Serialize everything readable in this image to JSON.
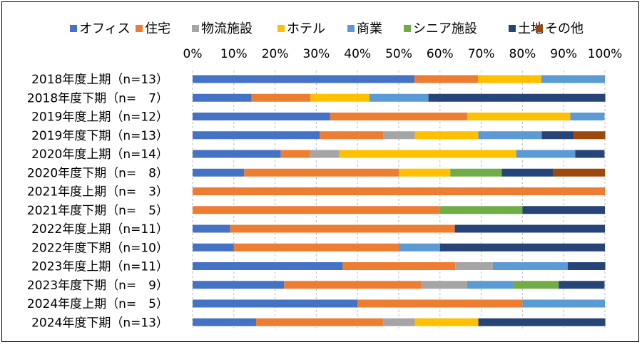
{
  "chart_data": {
    "type": "bar",
    "orientation": "horizontal",
    "stacked": "percent",
    "legend_position": "top",
    "title": "",
    "xlabel": "",
    "ylabel": "",
    "xlim": [
      0,
      100
    ],
    "x_ticks": [
      "0%",
      "10%",
      "20%",
      "30%",
      "40%",
      "50%",
      "60%",
      "70%",
      "80%",
      "90%",
      "100%"
    ],
    "categories": [
      "2018年度上期（n=13）",
      "2018年度下期（n=　7）",
      "2019年度上期（n=12）",
      "2019年度下期（n=13）",
      "2020年度上期（n=14）",
      "2020年度下期（n=　8）",
      "2021年度上期（n=　3）",
      "2021年度下期（n=　5）",
      "2022年度上期（n=11）",
      "2022年度下期（n=10）",
      "2023年度上期（n=11）",
      "2023年度下期（n=　9）",
      "2024年度上期（n=　5）",
      "2024年度下期（n=13）"
    ],
    "series": [
      {
        "name": "オフィス",
        "color": "#4472C4",
        "values": [
          53.8,
          14.3,
          33.3,
          30.8,
          21.4,
          12.5,
          0,
          0,
          9.1,
          10.0,
          36.4,
          22.2,
          40.0,
          15.4
        ]
      },
      {
        "name": "住宅",
        "color": "#ED7D31",
        "values": [
          15.4,
          14.3,
          33.3,
          15.4,
          7.1,
          37.5,
          100,
          60.0,
          54.5,
          40.0,
          27.3,
          33.3,
          40.0,
          30.8
        ]
      },
      {
        "name": "物流施設",
        "color": "#A5A5A5",
        "values": [
          0,
          0,
          0,
          7.7,
          7.1,
          0,
          0,
          0,
          0,
          0,
          9.1,
          11.1,
          0,
          7.7
        ]
      },
      {
        "name": "ホテル",
        "color": "#FFC000",
        "values": [
          15.4,
          14.3,
          25.0,
          15.4,
          42.9,
          12.5,
          0,
          0,
          0,
          0,
          0,
          0,
          0,
          15.4
        ]
      },
      {
        "name": "商業",
        "color": "#5B9BD5",
        "values": [
          15.4,
          14.3,
          8.3,
          15.4,
          14.3,
          0,
          0,
          0,
          0,
          10.0,
          18.2,
          11.1,
          20.0,
          0
        ]
      },
      {
        "name": "シニア施設",
        "color": "#70AD47",
        "values": [
          0,
          0,
          0,
          0,
          0,
          12.5,
          0,
          20.0,
          0,
          0,
          0,
          11.1,
          0,
          0
        ]
      },
      {
        "name": "土地",
        "color": "#264478",
        "values": [
          0,
          42.9,
          0,
          7.7,
          7.1,
          12.5,
          0,
          20.0,
          36.4,
          40.0,
          9.1,
          11.1,
          0,
          30.8
        ]
      },
      {
        "name": "その他",
        "color": "#9E480E",
        "values": [
          0,
          0,
          0,
          7.7,
          0,
          12.5,
          0,
          0,
          0,
          0,
          0,
          0,
          0,
          0
        ]
      }
    ]
  }
}
